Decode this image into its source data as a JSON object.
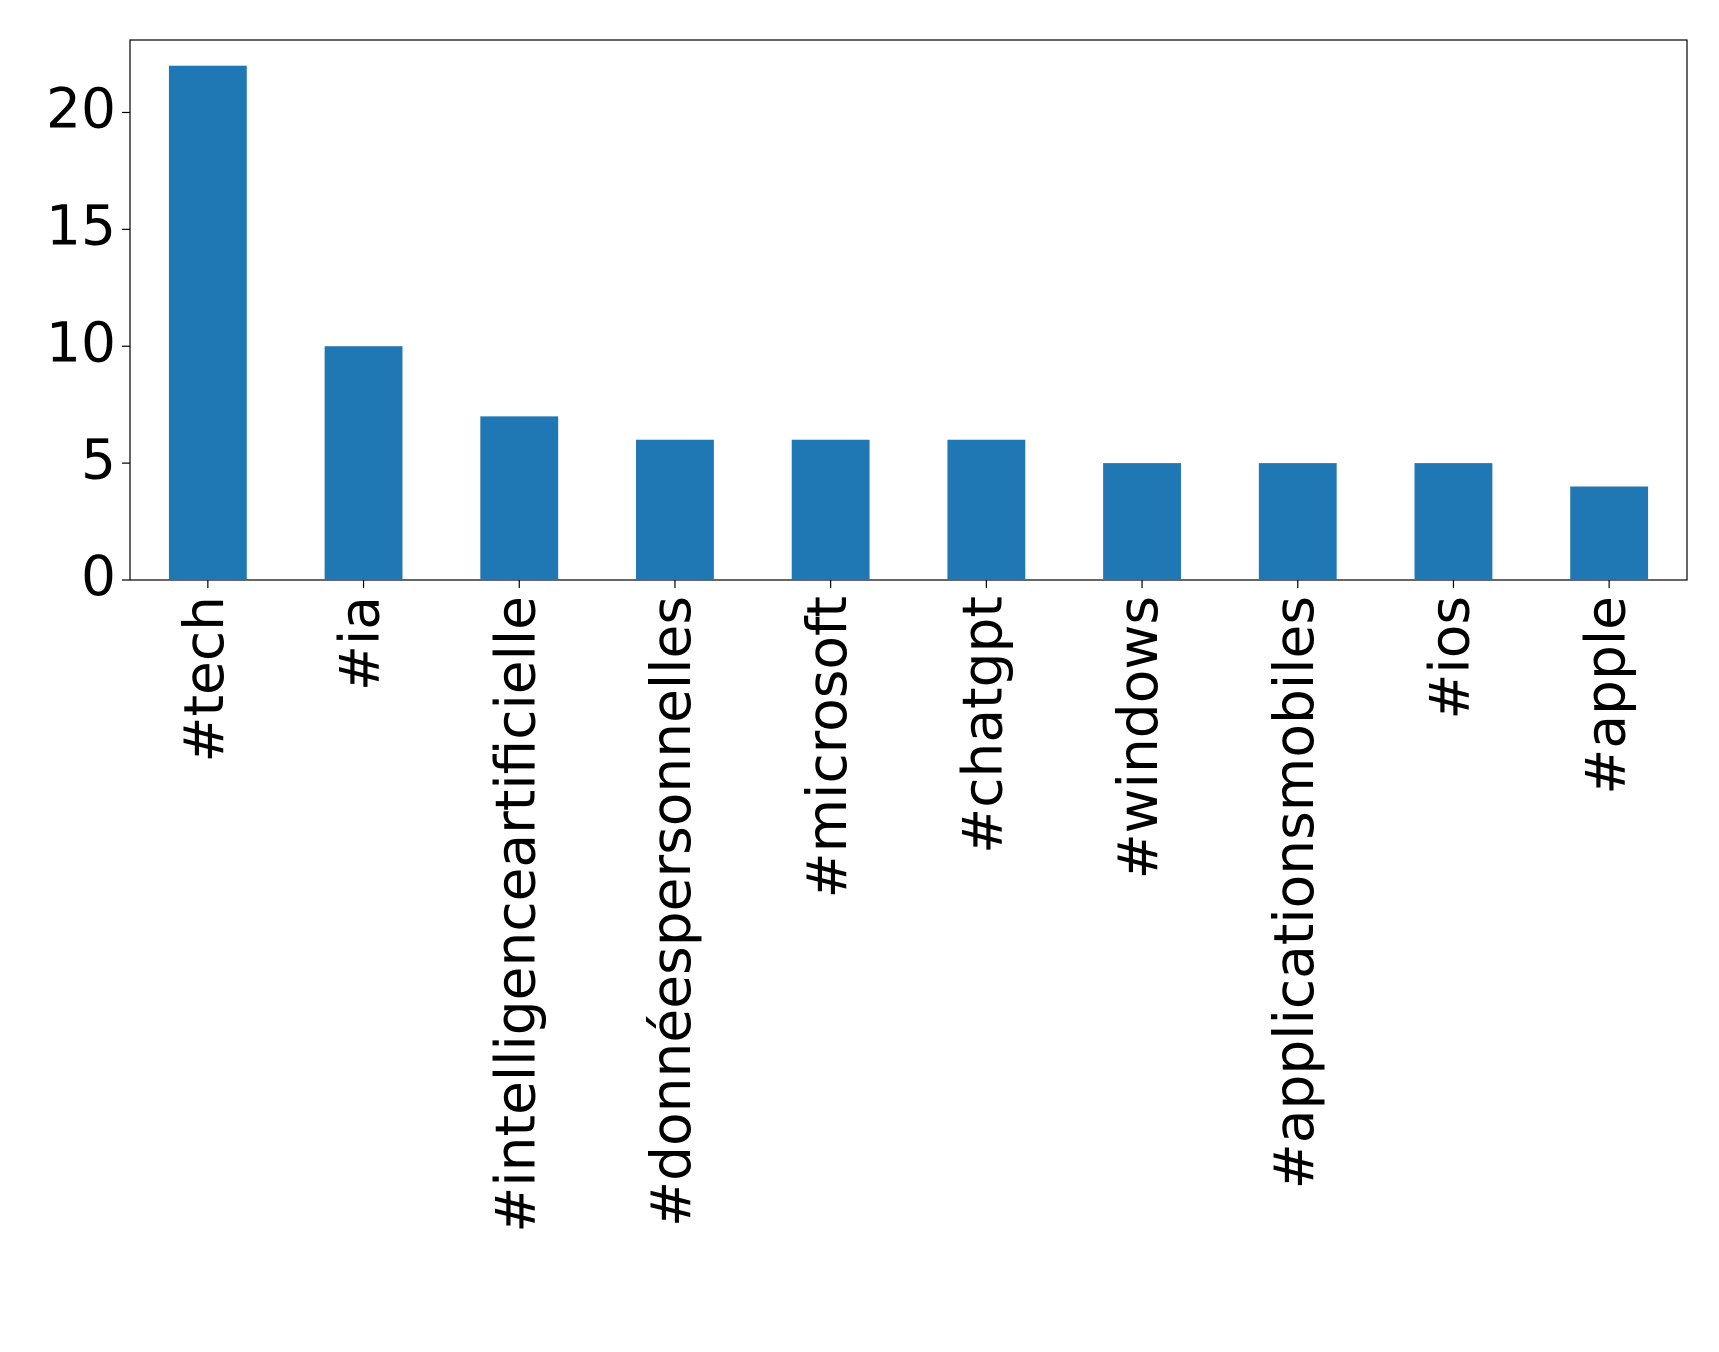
{
  "chart_data": {
    "type": "bar",
    "categories": [
      "#tech",
      "#ia",
      "#intelligenceartificielle",
      "#donnéespersonnelles",
      "#microsoft",
      "#chatgpt",
      "#windows",
      "#applicationsmobiles",
      "#ios",
      "#apple"
    ],
    "values": [
      22,
      10,
      7,
      6,
      6,
      6,
      5,
      5,
      5,
      4
    ],
    "color": "#1f77b4",
    "ylim": [
      0,
      23.1
    ],
    "yticks": [
      0,
      5,
      10,
      15,
      20
    ],
    "grid": false
  }
}
